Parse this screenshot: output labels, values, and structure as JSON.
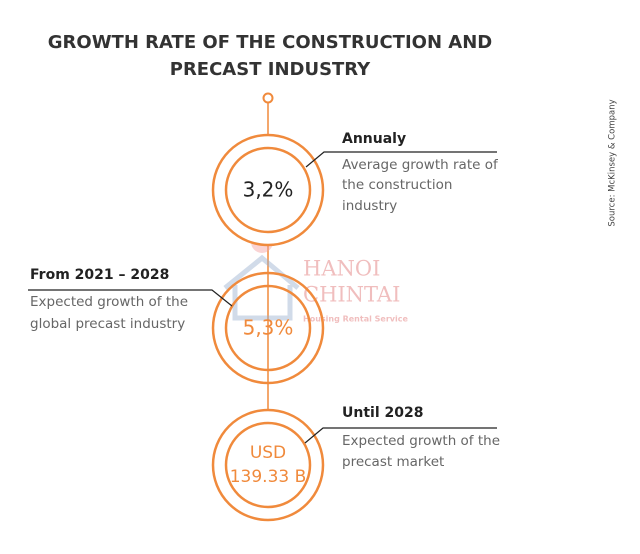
{
  "header": {
    "title_lines": [
      "GROWTH RATE OF THE CONSTRUCTION AND",
      "PRECAST INDUSTRY"
    ]
  },
  "source": "Source: McKinsey & Company",
  "items": [
    {
      "value_lines": [
        "3,2%"
      ],
      "heading": "Annualy",
      "description_lines": [
        "Average growth rate of",
        "the construction",
        "industry"
      ]
    },
    {
      "value_lines": [
        "5,3%"
      ],
      "heading": "From 2021 – 2028",
      "description_lines": [
        "Expected growth of the",
        "global precast industry"
      ]
    },
    {
      "value_lines": [
        "USD",
        "139.33 B"
      ],
      "heading": "Until 2028",
      "description_lines": [
        "Expected growth of the",
        "precast market"
      ]
    }
  ],
  "watermark": {
    "lines": [
      "HANOI",
      "CHINTAI"
    ],
    "tagline": "Housing Rental Service"
  }
}
